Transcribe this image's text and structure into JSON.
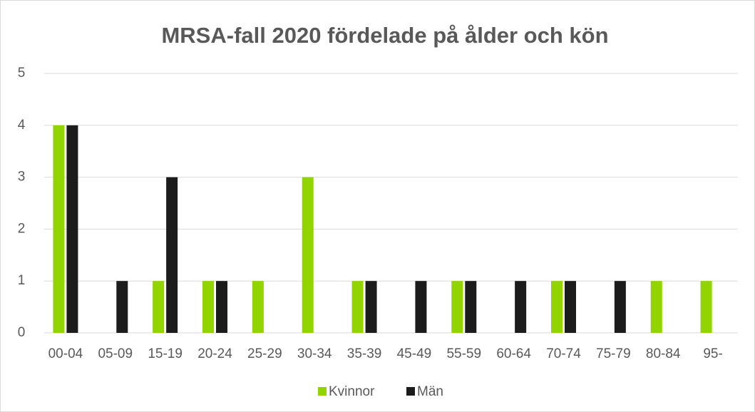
{
  "chart_data": {
    "type": "bar",
    "title": "MRSA-fall 2020 fördelade på ålder och kön",
    "categories": [
      "00-04",
      "05-09",
      "15-19",
      "20-24",
      "25-29",
      "30-34",
      "35-39",
      "45-49",
      "55-59",
      "60-64",
      "70-74",
      "75-79",
      "80-84",
      "95-"
    ],
    "series": [
      {
        "name": "Kvinnor",
        "color": "#92d400",
        "values": [
          4,
          0,
          1,
          1,
          1,
          3,
          1,
          0,
          1,
          0,
          1,
          0,
          1,
          1
        ]
      },
      {
        "name": "Män",
        "color": "#1c1c1c",
        "values": [
          4,
          1,
          3,
          1,
          0,
          0,
          1,
          1,
          1,
          1,
          1,
          1,
          0,
          0
        ]
      }
    ],
    "ylim": [
      0,
      5
    ],
    "yticks": [
      0,
      1,
      2,
      3,
      4,
      5
    ],
    "grid": true,
    "legend": "bottom"
  }
}
